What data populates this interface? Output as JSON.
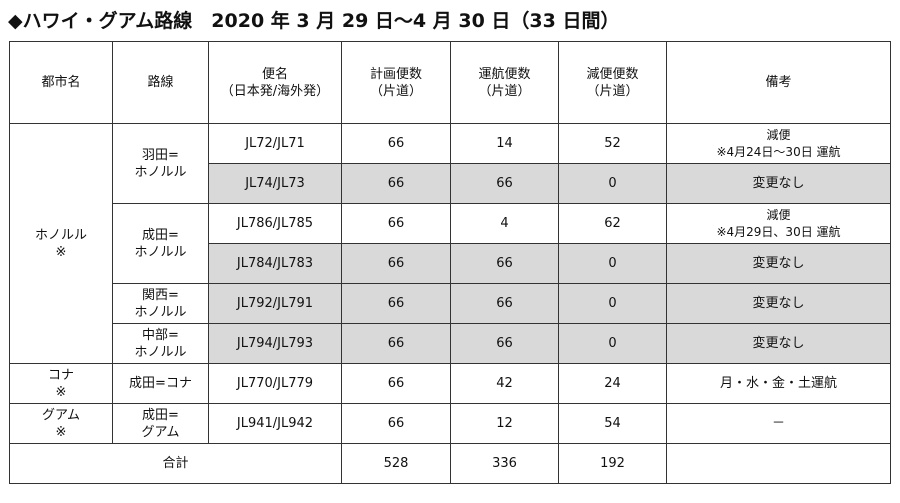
{
  "title": "◆ハワイ・グアム路線　2020 年 3 月 29 日～4 月 30 日（33 日間）",
  "headers": {
    "city": "都市名",
    "route": "路線",
    "flight": "便名",
    "flight_sub": "（日本発/海外発）",
    "planned": "計画便数",
    "operated": "運航便数",
    "reduced": "減便便数",
    "oneway": "（片道）",
    "remarks": "備考"
  },
  "cities": {
    "honolulu": [
      "ホノルル",
      "※"
    ],
    "kona": [
      "コナ",
      "※"
    ],
    "guam": [
      "グアム",
      "※"
    ]
  },
  "routes": {
    "haneda": [
      "羽田=",
      "ホノルル"
    ],
    "narita": [
      "成田=",
      "ホノルル"
    ],
    "kansai": [
      "関西=",
      "ホノルル"
    ],
    "chubu": [
      "中部=",
      "ホノルル"
    ],
    "narita_kona": "成田=コナ",
    "narita_guam": [
      "成田=",
      "グアム"
    ]
  },
  "rows": [
    {
      "flight": "JL72/JL71",
      "planned": "66",
      "operated": "14",
      "reduced": "52",
      "remarks": [
        "減便",
        "※4月24日～30日 運航"
      ]
    },
    {
      "flight": "JL74/JL73",
      "planned": "66",
      "operated": "66",
      "reduced": "0",
      "remarks": [
        "変更なし"
      ]
    },
    {
      "flight": "JL786/JL785",
      "planned": "66",
      "operated": "4",
      "reduced": "62",
      "remarks": [
        "減便",
        "※4月29日、30日 運航"
      ]
    },
    {
      "flight": "JL784/JL783",
      "planned": "66",
      "operated": "66",
      "reduced": "0",
      "remarks": [
        "変更なし"
      ]
    },
    {
      "flight": "JL792/JL791",
      "planned": "66",
      "operated": "66",
      "reduced": "0",
      "remarks": [
        "変更なし"
      ]
    },
    {
      "flight": "JL794/JL793",
      "planned": "66",
      "operated": "66",
      "reduced": "0",
      "remarks": [
        "変更なし"
      ]
    },
    {
      "flight": "JL770/JL779",
      "planned": "66",
      "operated": "42",
      "reduced": "24",
      "remarks": [
        "月・水・金・土運航"
      ]
    },
    {
      "flight": "JL941/JL942",
      "planned": "66",
      "operated": "12",
      "reduced": "54",
      "remarks": [
        "－"
      ]
    }
  ],
  "total": {
    "label": "合計",
    "planned": "528",
    "operated": "336",
    "reduced": "192"
  },
  "colors": {
    "shade": "#d9d9d9",
    "border": "#333333"
  }
}
